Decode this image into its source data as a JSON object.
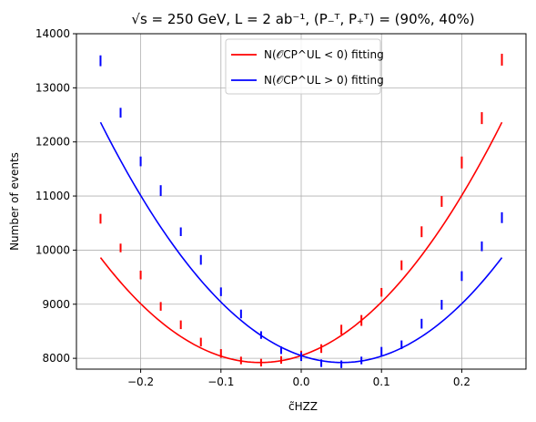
{
  "chart_data": {
    "type": "line",
    "title": "√s = 250 GeV,  L = 2 ab⁻¹,  (P₋ᵀ, P₊ᵀ) = (90%, 40%)",
    "xlabel": "c̃HZZ",
    "ylabel": "Number of events",
    "xlim": [
      -0.28,
      0.28
    ],
    "ylim": [
      7800,
      14000
    ],
    "xticks": [
      -0.2,
      -0.1,
      0.0,
      0.1,
      0.2
    ],
    "xtick_labels": [
      "−0.2",
      "−0.1",
      "0.0",
      "0.1",
      "0.2"
    ],
    "yticks": [
      8000,
      9000,
      10000,
      11000,
      12000,
      13000,
      14000
    ],
    "ytick_labels": [
      "8000",
      "9000",
      "10000",
      "11000",
      "12000",
      "13000",
      "14000"
    ],
    "grid": true,
    "legend_position": "top-center",
    "series": [
      {
        "name": "N(𝒪CP^UL < 0) fitting",
        "color": "#ff0000",
        "fit": {
          "a": 49000,
          "b": 5000,
          "c": 8050
        },
        "x": [
          -0.25,
          -0.225,
          -0.2,
          -0.175,
          -0.15,
          -0.125,
          -0.1,
          -0.075,
          -0.05,
          -0.025,
          0.0,
          0.025,
          0.05,
          0.075,
          0.1,
          0.125,
          0.15,
          0.175,
          0.2,
          0.225,
          0.25
        ],
        "y": [
          10580,
          10040,
          9540,
          8960,
          8620,
          8300,
          8090,
          7960,
          7920,
          7970,
          8060,
          8180,
          8530,
          8700,
          9220,
          9720,
          10340,
          10900,
          11620,
          12440,
          13520
        ],
        "err": [
          90,
          80,
          80,
          80,
          80,
          80,
          80,
          70,
          70,
          70,
          80,
          80,
          90,
          100,
          80,
          90,
          100,
          100,
          110,
          110,
          110
        ]
      },
      {
        "name": "N(𝒪CP^UL > 0) fitting",
        "color": "#0000ff",
        "fit": {
          "a": 49000,
          "b": -5000,
          "c": 8050
        },
        "x": [
          -0.25,
          -0.225,
          -0.2,
          -0.175,
          -0.15,
          -0.125,
          -0.1,
          -0.075,
          -0.05,
          -0.025,
          0.0,
          0.025,
          0.05,
          0.075,
          0.1,
          0.125,
          0.15,
          0.175,
          0.2,
          0.225,
          0.25
        ],
        "y": [
          13500,
          12540,
          11640,
          11100,
          10340,
          9820,
          9230,
          8820,
          8430,
          8150,
          8030,
          7910,
          7890,
          7960,
          8130,
          8250,
          8640,
          8990,
          9520,
          10070,
          10600
        ],
        "err": [
          100,
          90,
          90,
          100,
          80,
          90,
          80,
          80,
          70,
          70,
          80,
          70,
          70,
          70,
          80,
          80,
          90,
          90,
          90,
          90,
          100
        ]
      }
    ]
  }
}
